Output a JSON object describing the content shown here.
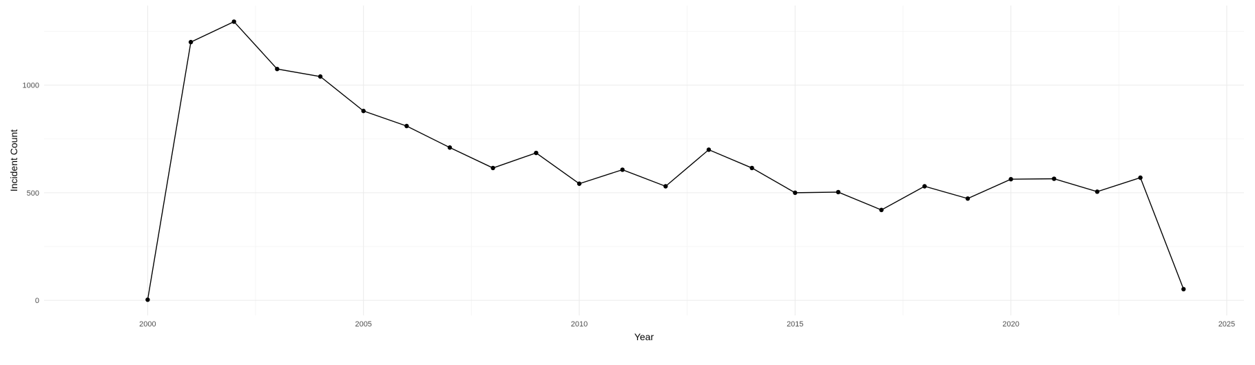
{
  "chart_data": {
    "type": "line",
    "xlabel": "Year",
    "ylabel": "Incident Count",
    "xlim": [
      1997.6,
      2025.4
    ],
    "ylim": [
      -70,
      1370
    ],
    "x_ticks": [
      2000,
      2005,
      2010,
      2015,
      2020,
      2025
    ],
    "x_tick_labels": [
      "2000",
      "2005",
      "2010",
      "2015",
      "2020",
      "2025"
    ],
    "y_ticks": [
      0,
      500,
      1000
    ],
    "y_tick_labels": [
      "0",
      "500",
      "1000"
    ],
    "grid": true,
    "legend": "none",
    "series": [
      {
        "color": "#000000",
        "x": [
          2000,
          2001,
          2002,
          2003,
          2004,
          2005,
          2006,
          2007,
          2008,
          2009,
          2010,
          2011,
          2012,
          2013,
          2014,
          2015,
          2016,
          2017,
          2018,
          2019,
          2020,
          2021,
          2022,
          2023,
          2024
        ],
        "values": [
          3,
          1200,
          1295,
          1075,
          1040,
          880,
          810,
          710,
          615,
          685,
          542,
          607,
          530,
          700,
          615,
          500,
          503,
          420,
          530,
          473,
          563,
          565,
          505,
          570,
          52
        ]
      }
    ]
  }
}
